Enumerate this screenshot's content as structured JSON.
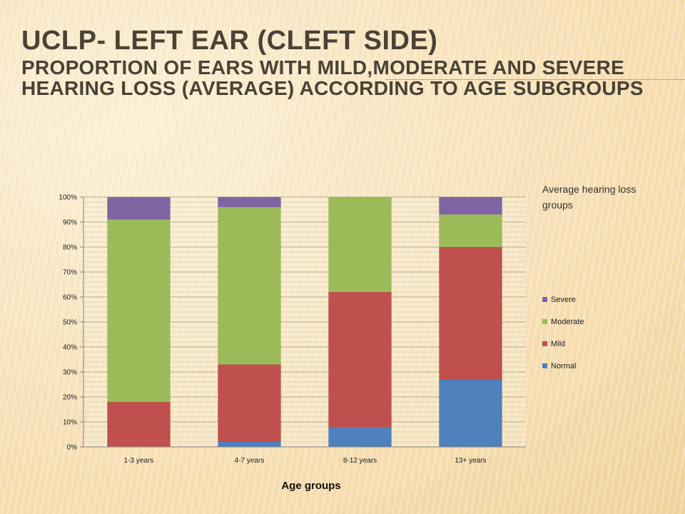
{
  "title": "UCLP- Left ear (cleft side)",
  "subtitle": "Proportion of ears with mild,moderate and severe hearing loss (average) according to age subgroups",
  "chart_data": {
    "type": "bar",
    "stacked": true,
    "percent": true,
    "categories": [
      "1-3 years",
      "4-7 years",
      "8-12 years",
      "13+ years"
    ],
    "series": [
      {
        "name": "Normal",
        "values": [
          0,
          2,
          8,
          27
        ],
        "color": "#4f81bd"
      },
      {
        "name": "Mild",
        "values": [
          18,
          31,
          54,
          53
        ],
        "color": "#c0504d"
      },
      {
        "name": "Moderate",
        "values": [
          73,
          63,
          38,
          13
        ],
        "color": "#9bbb59"
      },
      {
        "name": "Severe",
        "values": [
          9,
          4,
          0,
          7
        ],
        "color": "#8064a2"
      }
    ],
    "ylim": [
      0,
      100
    ],
    "yticks": [
      "0%",
      "10%",
      "20%",
      "30%",
      "40%",
      "50%",
      "60%",
      "70%",
      "80%",
      "90%",
      "100%"
    ],
    "xlabel": "Age groups",
    "ylabel": "",
    "legend_title": "Average hearing loss groups",
    "legend_position": "right",
    "grid": true
  }
}
